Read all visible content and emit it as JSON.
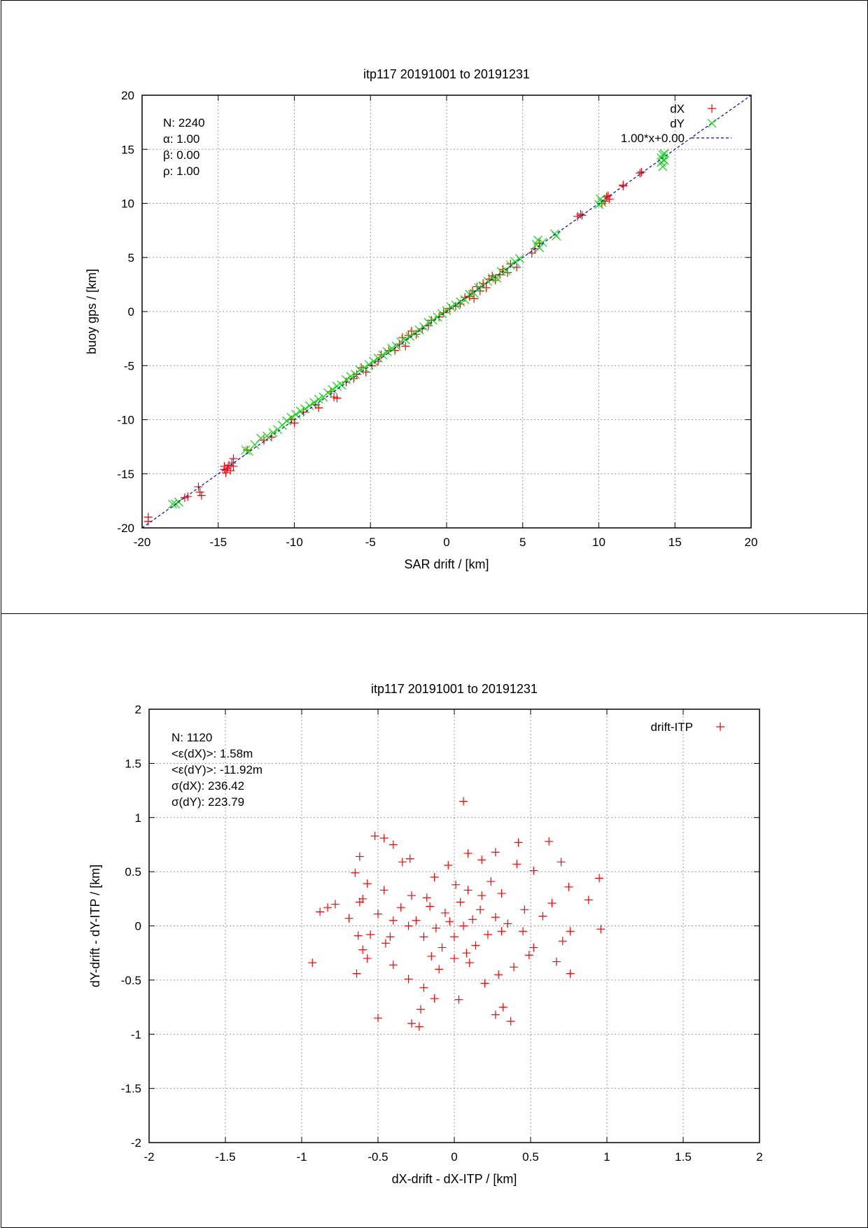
{
  "chart_data": [
    {
      "type": "scatter",
      "title": "itp117 20191001 to 20191231",
      "xlabel": "SAR drift / [km]",
      "ylabel": "buoy gps / [km]",
      "xlim": [
        -20,
        20
      ],
      "ylim": [
        -20,
        20
      ],
      "xticks": [
        "-20",
        "-15",
        "-10",
        "-5",
        "0",
        "5",
        "10",
        "15",
        "20"
      ],
      "yticks": [
        "-20",
        "-15",
        "-10",
        "-5",
        "0",
        "5",
        "10",
        "15",
        "20"
      ],
      "grid": true,
      "legend_position": "top-right",
      "stats": [
        "N: 2240",
        "α: 1.00",
        "β: 0.00",
        "ρ: 1.00"
      ],
      "series": [
        {
          "name": "dX",
          "marker": "+",
          "color": "#ff0000",
          "points": [
            [
              -19.6,
              -19.0
            ],
            [
              -19.6,
              -19.4
            ],
            [
              -17.2,
              -17.2
            ],
            [
              -17.0,
              -17.1
            ],
            [
              -16.3,
              -16.2
            ],
            [
              -16.2,
              -16.7
            ],
            [
              -16.1,
              -17.0
            ],
            [
              -14.6,
              -14.3
            ],
            [
              -14.6,
              -14.6
            ],
            [
              -14.5,
              -14.9
            ],
            [
              -14.4,
              -14.5
            ],
            [
              -14.3,
              -14.2
            ],
            [
              -14.2,
              -14.7
            ],
            [
              -14.1,
              -14.0
            ],
            [
              -14.0,
              -13.6
            ],
            [
              -14.0,
              -14.3
            ],
            [
              -13.1,
              -12.8
            ],
            [
              -12.0,
              -11.9
            ],
            [
              -11.5,
              -11.6
            ],
            [
              -10.2,
              -10.0
            ],
            [
              -10.0,
              -10.3
            ],
            [
              -9.4,
              -9.3
            ],
            [
              -8.6,
              -8.6
            ],
            [
              -8.4,
              -8.9
            ],
            [
              -7.6,
              -7.4
            ],
            [
              -7.4,
              -7.9
            ],
            [
              -7.2,
              -8.0
            ],
            [
              -6.6,
              -6.5
            ],
            [
              -6.1,
              -6.2
            ],
            [
              -5.9,
              -5.8
            ],
            [
              -5.6,
              -5.2
            ],
            [
              -5.3,
              -5.6
            ],
            [
              -4.9,
              -5.0
            ],
            [
              -4.5,
              -4.6
            ],
            [
              -4.3,
              -4.0
            ],
            [
              -3.8,
              -3.6
            ],
            [
              -3.4,
              -3.6
            ],
            [
              -3.1,
              -3.0
            ],
            [
              -2.9,
              -2.4
            ],
            [
              -2.7,
              -3.2
            ],
            [
              -2.5,
              -2.2
            ],
            [
              -2.3,
              -1.8
            ],
            [
              -2.0,
              -2.1
            ],
            [
              -1.6,
              -1.6
            ],
            [
              -1.2,
              -1.3
            ],
            [
              -1.0,
              -0.8
            ],
            [
              -0.5,
              -0.5
            ],
            [
              -0.2,
              -0.1
            ],
            [
              0.2,
              0.3
            ],
            [
              0.6,
              0.5
            ],
            [
              0.9,
              0.7
            ],
            [
              1.2,
              1.3
            ],
            [
              1.5,
              1.4
            ],
            [
              1.7,
              1.9
            ],
            [
              1.8,
              1.2
            ],
            [
              2.0,
              2.3
            ],
            [
              2.2,
              1.9
            ],
            [
              2.4,
              2.6
            ],
            [
              2.6,
              2.2
            ],
            [
              2.8,
              3.0
            ],
            [
              3.0,
              3.3
            ],
            [
              3.2,
              2.9
            ],
            [
              3.5,
              3.4
            ],
            [
              3.7,
              3.9
            ],
            [
              4.0,
              3.6
            ],
            [
              4.2,
              4.4
            ],
            [
              4.6,
              4.1
            ],
            [
              5.6,
              5.4
            ],
            [
              5.8,
              5.8
            ],
            [
              6.1,
              6.3
            ],
            [
              8.6,
              8.8
            ],
            [
              8.8,
              9.0
            ],
            [
              8.9,
              8.9
            ],
            [
              10.2,
              10.0
            ],
            [
              10.4,
              10.2
            ],
            [
              10.5,
              10.6
            ],
            [
              10.6,
              10.7
            ],
            [
              10.7,
              10.4
            ],
            [
              11.6,
              11.6
            ],
            [
              11.6,
              11.7
            ],
            [
              12.7,
              12.8
            ],
            [
              12.8,
              12.9
            ]
          ]
        },
        {
          "name": "dY",
          "marker": "x",
          "color": "#00e000",
          "points": [
            [
              -18.0,
              -17.8
            ],
            [
              -17.8,
              -17.8
            ],
            [
              -17.6,
              -17.6
            ],
            [
              -13.2,
              -12.8
            ],
            [
              -13.0,
              -12.9
            ],
            [
              -12.6,
              -12.3
            ],
            [
              -12.2,
              -11.7
            ],
            [
              -11.8,
              -11.5
            ],
            [
              -11.4,
              -11.2
            ],
            [
              -11.1,
              -10.9
            ],
            [
              -10.8,
              -10.5
            ],
            [
              -10.5,
              -10.1
            ],
            [
              -10.2,
              -9.8
            ],
            [
              -9.9,
              -9.5
            ],
            [
              -9.6,
              -9.2
            ],
            [
              -9.3,
              -9.0
            ],
            [
              -9.0,
              -8.7
            ],
            [
              -8.7,
              -8.4
            ],
            [
              -8.4,
              -8.1
            ],
            [
              -8.1,
              -7.9
            ],
            [
              -7.8,
              -7.5
            ],
            [
              -7.5,
              -7.2
            ],
            [
              -7.2,
              -6.9
            ],
            [
              -6.9,
              -6.8
            ],
            [
              -6.6,
              -6.3
            ],
            [
              -6.3,
              -6.0
            ],
            [
              -6.0,
              -5.8
            ],
            [
              -5.7,
              -5.4
            ],
            [
              -5.4,
              -5.2
            ],
            [
              -5.1,
              -4.9
            ],
            [
              -4.8,
              -4.6
            ],
            [
              -4.5,
              -4.3
            ],
            [
              -4.2,
              -4.0
            ],
            [
              -3.9,
              -3.7
            ],
            [
              -3.6,
              -3.4
            ],
            [
              -3.3,
              -3.2
            ],
            [
              -3.0,
              -2.8
            ],
            [
              -2.7,
              -2.6
            ],
            [
              -2.4,
              -2.3
            ],
            [
              -2.1,
              -2.0
            ],
            [
              -1.8,
              -1.7
            ],
            [
              -1.5,
              -1.4
            ],
            [
              -1.2,
              -1.0
            ],
            [
              -0.9,
              -0.8
            ],
            [
              -0.6,
              -0.5
            ],
            [
              -0.3,
              -0.2
            ],
            [
              0.0,
              0.1
            ],
            [
              0.3,
              0.4
            ],
            [
              0.6,
              0.6
            ],
            [
              0.9,
              0.9
            ],
            [
              1.2,
              1.1
            ],
            [
              1.5,
              1.6
            ],
            [
              1.8,
              1.7
            ],
            [
              2.1,
              2.2
            ],
            [
              2.4,
              2.4
            ],
            [
              2.7,
              2.8
            ],
            [
              3.0,
              3.1
            ],
            [
              3.3,
              3.1
            ],
            [
              3.6,
              3.7
            ],
            [
              3.9,
              3.8
            ],
            [
              4.2,
              4.3
            ],
            [
              4.5,
              4.6
            ],
            [
              4.8,
              4.9
            ],
            [
              5.9,
              6.2
            ],
            [
              6.0,
              6.6
            ],
            [
              6.1,
              5.9
            ],
            [
              6.3,
              6.4
            ],
            [
              7.1,
              7.2
            ],
            [
              7.2,
              7.0
            ],
            [
              10.0,
              9.9
            ],
            [
              10.1,
              10.4
            ],
            [
              10.2,
              10.1
            ],
            [
              14.1,
              13.8
            ],
            [
              14.1,
              14.2
            ],
            [
              14.2,
              14.5
            ],
            [
              14.2,
              13.4
            ],
            [
              14.3,
              14.0
            ],
            [
              14.3,
              14.6
            ]
          ]
        },
        {
          "name": "1.00*x+0.00",
          "type": "line",
          "style": "dashed",
          "color": "#0000dd",
          "points": [
            [
              -20,
              -20
            ],
            [
              20,
              20
            ]
          ]
        }
      ]
    },
    {
      "type": "scatter",
      "title": "itp117 20191001 to 20191231",
      "xlabel": "dX-drift - dX-ITP / [km]",
      "ylabel": "dY-drift - dY-ITP / [km]",
      "xlim": [
        -2,
        2
      ],
      "ylim": [
        -2,
        2
      ],
      "xticks": [
        "-2",
        "-1.5",
        "-1",
        "-0.5",
        "0",
        "0.5",
        "1",
        "1.5",
        "2"
      ],
      "yticks": [
        "-2",
        "-1.5",
        "-1",
        "-0.5",
        "0",
        "0.5",
        "1",
        "1.5",
        "2"
      ],
      "grid": true,
      "legend_position": "top-right",
      "stats": [
        "N: 1120",
        "<ε(dX)>:  1.58m",
        "<ε(dY)>: -11.92m",
        "σ(dX):  236.42",
        "σ(dY):  223.79"
      ],
      "series": [
        {
          "name": "drift-ITP",
          "marker": "+",
          "color": "#ff0000",
          "points": [
            [
              0.06,
              1.15
            ],
            [
              -0.52,
              0.83
            ],
            [
              -0.46,
              0.81
            ],
            [
              -0.4,
              0.75
            ],
            [
              0.42,
              0.77
            ],
            [
              0.62,
              0.78
            ],
            [
              0.27,
              0.68
            ],
            [
              0.09,
              0.67
            ],
            [
              -0.29,
              0.62
            ],
            [
              -0.62,
              0.64
            ],
            [
              0.18,
              0.61
            ],
            [
              0.41,
              0.57
            ],
            [
              0.7,
              0.59
            ],
            [
              -0.04,
              0.56
            ],
            [
              -0.34,
              0.59
            ],
            [
              0.52,
              0.51
            ],
            [
              -0.65,
              0.49
            ],
            [
              0.95,
              0.44
            ],
            [
              0.75,
              0.36
            ],
            [
              -0.57,
              0.39
            ],
            [
              -0.13,
              0.45
            ],
            [
              0.24,
              0.41
            ],
            [
              -0.46,
              0.33
            ],
            [
              0.31,
              0.3
            ],
            [
              -0.6,
              0.25
            ],
            [
              -0.62,
              0.22
            ],
            [
              -0.78,
              0.2
            ],
            [
              -0.83,
              0.17
            ],
            [
              -0.88,
              0.13
            ],
            [
              0.88,
              0.24
            ],
            [
              0.64,
              0.21
            ],
            [
              -0.69,
              0.07
            ],
            [
              -0.5,
              0.11
            ],
            [
              0.58,
              0.09
            ],
            [
              -0.35,
              0.17
            ],
            [
              0.46,
              0.15
            ],
            [
              -0.18,
              0.26
            ],
            [
              0.09,
              0.33
            ],
            [
              -0.4,
              0.05
            ],
            [
              0.35,
              0.02
            ],
            [
              -0.55,
              -0.08
            ],
            [
              -0.63,
              -0.09
            ],
            [
              0.76,
              -0.05
            ],
            [
              0.96,
              -0.03
            ],
            [
              -0.6,
              -0.22
            ],
            [
              0.71,
              -0.14
            ],
            [
              -0.45,
              -0.16
            ],
            [
              0.52,
              -0.2
            ],
            [
              -0.64,
              -0.44
            ],
            [
              -0.93,
              -0.34
            ],
            [
              0.67,
              -0.33
            ],
            [
              0.76,
              -0.44
            ],
            [
              -0.57,
              -0.3
            ],
            [
              0.49,
              -0.27
            ],
            [
              -0.4,
              -0.36
            ],
            [
              0.39,
              -0.38
            ],
            [
              -0.3,
              -0.49
            ],
            [
              0.29,
              -0.45
            ],
            [
              -0.2,
              -0.57
            ],
            [
              0.2,
              -0.53
            ],
            [
              -0.13,
              -0.67
            ],
            [
              0.03,
              -0.68
            ],
            [
              -0.22,
              -0.77
            ],
            [
              0.32,
              -0.75
            ],
            [
              -0.5,
              -0.85
            ],
            [
              -0.28,
              -0.9
            ],
            [
              -0.23,
              -0.93
            ],
            [
              0.37,
              -0.88
            ],
            [
              0.27,
              -0.82
            ],
            [
              -0.1,
              -0.4
            ],
            [
              0.1,
              -0.34
            ],
            [
              0.0,
              -0.3
            ],
            [
              -0.08,
              -0.2
            ],
            [
              0.14,
              -0.18
            ],
            [
              -0.2,
              -0.1
            ],
            [
              0.22,
              -0.08
            ],
            [
              -0.12,
              -0.02
            ],
            [
              0.06,
              0.0
            ],
            [
              -0.03,
              0.04
            ],
            [
              0.12,
              0.06
            ],
            [
              -0.25,
              0.05
            ],
            [
              0.27,
              0.08
            ],
            [
              -0.06,
              0.12
            ],
            [
              0.17,
              0.15
            ],
            [
              -0.16,
              0.18
            ],
            [
              0.04,
              0.22
            ],
            [
              -0.3,
              0.0
            ],
            [
              0.31,
              -0.05
            ],
            [
              0.0,
              -0.1
            ],
            [
              0.08,
              -0.25
            ],
            [
              -0.15,
              -0.28
            ],
            [
              0.18,
              0.28
            ],
            [
              -0.28,
              0.28
            ],
            [
              0.45,
              -0.05
            ],
            [
              -0.42,
              -0.1
            ],
            [
              0.01,
              0.38
            ]
          ]
        }
      ]
    }
  ]
}
